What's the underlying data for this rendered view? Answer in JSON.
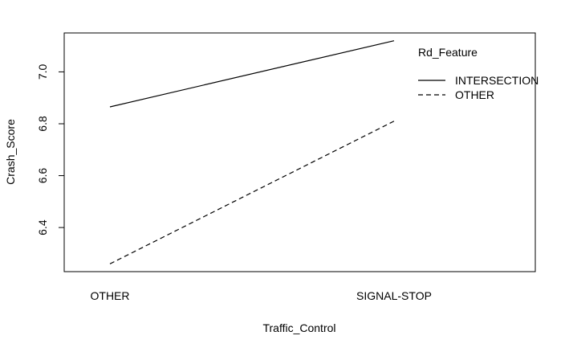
{
  "chart_data": {
    "type": "line",
    "title": "",
    "xlabel": "Traffic_Control",
    "ylabel": "Crash_Score",
    "categories": [
      "OTHER",
      "SIGNAL-STOP"
    ],
    "ylim": [
      6.23,
      7.15
    ],
    "yticks": [
      6.4,
      6.6,
      6.8,
      7.0
    ],
    "ytick_labels": [
      "6.4",
      "6.6",
      "6.8",
      "7.0"
    ],
    "grid": false,
    "legend": {
      "title": "Rd_Feature",
      "position": "top-right",
      "entries": [
        "INTERSECTION",
        "OTHER"
      ]
    },
    "series": [
      {
        "name": "INTERSECTION",
        "values": [
          6.865,
          7.12
        ],
        "dash": "solid",
        "color": "#000000"
      },
      {
        "name": "OTHER",
        "values": [
          6.26,
          6.81
        ],
        "dash": "dashed",
        "color": "#000000"
      }
    ]
  }
}
